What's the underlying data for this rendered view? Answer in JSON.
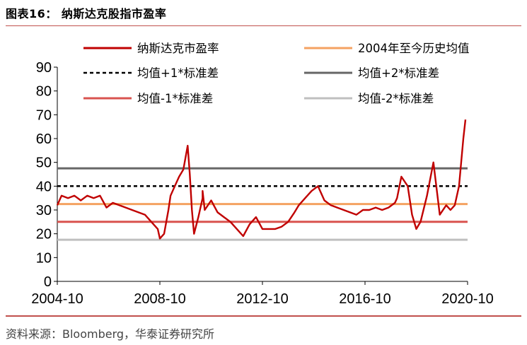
{
  "figure": {
    "title": "图表16：  纳斯达克股指市盈率",
    "source": "资料来源：Bloomberg，华泰证券研究所"
  },
  "chart_data": {
    "type": "line",
    "title": "",
    "xlabel": "",
    "ylabel": "",
    "ylim": [
      0,
      90
    ],
    "yticks": [
      0,
      10,
      20,
      30,
      40,
      50,
      60,
      70,
      80,
      90
    ],
    "xlim": [
      "2004-10",
      "2020-10"
    ],
    "xticks": [
      "2004-10",
      "2008-10",
      "2012-10",
      "2016-10",
      "2020-10"
    ],
    "grid": false,
    "legend_position": "top",
    "series": [
      {
        "name": "纳斯达克市盈率",
        "color": "#c00000",
        "style": "solid",
        "x": [
          "2004-10",
          "2004-12",
          "2005-03",
          "2005-06",
          "2005-09",
          "2005-12",
          "2006-03",
          "2006-06",
          "2006-09",
          "2006-12",
          "2007-03",
          "2007-06",
          "2007-09",
          "2007-12",
          "2008-03",
          "2008-06",
          "2008-09",
          "2008-10",
          "2008-12",
          "2009-02",
          "2009-03",
          "2009-05",
          "2009-07",
          "2009-09",
          "2009-11",
          "2009-12",
          "2010-01",
          "2010-02",
          "2010-04",
          "2010-06",
          "2010-06",
          "2010-07",
          "2010-10",
          "2011-01",
          "2011-04",
          "2011-07",
          "2011-10",
          "2012-01",
          "2012-04",
          "2012-07",
          "2012-10",
          "2013-01",
          "2013-04",
          "2013-07",
          "2013-10",
          "2014-01",
          "2014-03",
          "2014-06",
          "2014-09",
          "2014-12",
          "2015-03",
          "2015-06",
          "2015-09",
          "2015-12",
          "2016-03",
          "2016-06",
          "2016-09",
          "2016-12",
          "2017-03",
          "2017-06",
          "2017-09",
          "2017-12",
          "2018-01",
          "2018-03",
          "2018-06",
          "2018-08",
          "2018-10",
          "2018-12",
          "2019-03",
          "2019-06",
          "2019-09",
          "2019-12",
          "2020-02",
          "2020-04",
          "2020-06",
          "2020-08",
          "2020-09"
        ],
        "values": [
          32,
          36,
          35,
          36,
          34,
          36,
          35,
          36,
          31,
          33,
          32,
          31,
          30,
          29,
          28,
          25,
          22,
          18,
          20,
          30,
          36,
          40,
          44,
          47,
          57,
          45,
          30,
          20,
          27,
          35,
          38,
          30,
          34,
          29,
          27,
          25,
          22,
          19,
          24,
          27,
          22,
          22,
          22,
          23,
          25,
          29,
          32,
          35,
          38,
          40,
          34,
          32,
          31,
          30,
          29,
          28,
          30,
          30,
          31,
          30,
          31,
          33,
          35,
          44,
          40,
          28,
          22,
          25,
          36,
          50,
          28,
          32,
          30,
          32,
          40,
          60,
          68
        ]
      },
      {
        "name": "2004年至今历史均值",
        "color": "#f4a261",
        "style": "solid",
        "x": [
          "2004-10",
          "2020-10"
        ],
        "values": [
          32.5,
          32.5
        ]
      },
      {
        "name": "均值+1*标准差",
        "color": "#000000",
        "style": "dashed",
        "x": [
          "2004-10",
          "2020-10"
        ],
        "values": [
          40,
          40
        ]
      },
      {
        "name": "均值+2*标准差",
        "color": "#666666",
        "style": "solid",
        "x": [
          "2004-10",
          "2020-10"
        ],
        "values": [
          47.5,
          47.5
        ]
      },
      {
        "name": "均值-1*标准差",
        "color": "#d9534f",
        "style": "solid",
        "x": [
          "2004-10",
          "2020-10"
        ],
        "values": [
          25,
          25
        ]
      },
      {
        "name": "均值-2*标准差",
        "color": "#bfbfbf",
        "style": "solid",
        "x": [
          "2004-10",
          "2020-10"
        ],
        "values": [
          17.5,
          17.5
        ]
      }
    ]
  }
}
